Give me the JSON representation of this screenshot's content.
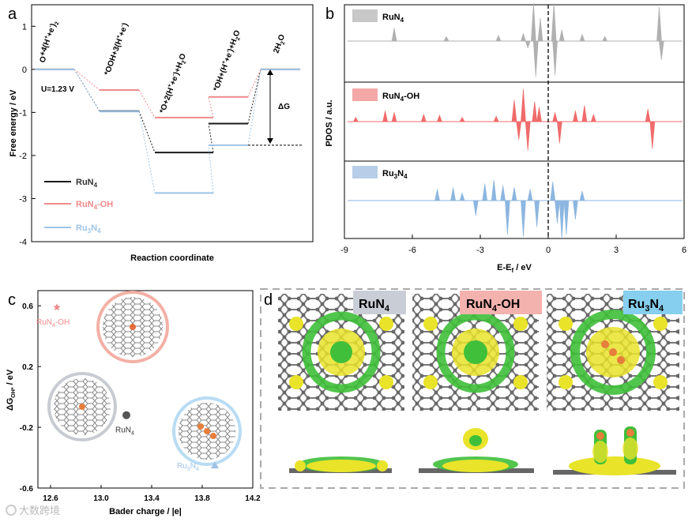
{
  "panel_letters": {
    "a": "a",
    "b": "b",
    "c": "c",
    "d": "d"
  },
  "colors": {
    "runa": "#1a1a1a",
    "run4oh": "#f08a8a",
    "ru3n4": "#9ec4e6",
    "pdos_runa_fill": "#b0b0b0",
    "pdos_run4oh_fill": "#ef6b6b",
    "pdos_ru3n4_fill": "#8cb6e0",
    "legend_runa_box": "#c8c8c8",
    "legend_run4oh_box": "#f4a7a7",
    "legend_ru3n4_box": "#b7cde8",
    "ruc_orange": "#e67e3c",
    "iso_yellow": "#e9e32a",
    "iso_green": "#3fbf3a",
    "label_gray_bg": "#c9ced6",
    "label_pink_bg": "#f4b2ae",
    "label_blue_bg": "#86cfee"
  },
  "chart_data": [
    {
      "type": "line",
      "panel": "a",
      "title": "",
      "xlabel": "Reaction coordinate",
      "ylabel": "Free energy / eV",
      "ylim": [
        -4,
        1.5
      ],
      "yticks": [
        "-4",
        "-3",
        "-2",
        "-1",
        "0",
        "1"
      ],
      "steps": [
        "O2+4(H+e-)",
        "*OOH+3(H+e-)",
        "*O+2(H+e-)+H2O",
        "*OH+(H+e-)+H2O",
        "2H2O"
      ],
      "step_labels_sub": [
        {
          "main": "O",
          "sub1": "2",
          "rest": "+4(H",
          "sup": "+",
          "tail": "+e",
          "sup2": "-",
          "end": ")"
        },
        {
          "main": "*OOH+3(H",
          "sup": "+",
          "tail": "+e",
          "sup2": "-",
          "end": ")"
        },
        {
          "main": "*O+2(H",
          "sup": "+",
          "tail": "+e",
          "sup2": "-",
          "end": ")+H",
          "sub1": "2",
          "end2": "O"
        },
        {
          "main": "*OH+(H",
          "sup": "+",
          "tail": "+e",
          "sup2": "-",
          "end": ")+H",
          "sub1": "2",
          "end2": "O"
        },
        {
          "main": "2H",
          "sub1": "2",
          "end2": "O"
        }
      ],
      "annotation_u": "U=1.23 V",
      "annotation_dg": "ΔG",
      "series": [
        {
          "name": "RuN4",
          "label_main": "RuN",
          "label_sub": "4",
          "label_tail": "",
          "values": [
            0,
            -0.97,
            -1.93,
            -1.26,
            0
          ]
        },
        {
          "name": "RuN4-OH",
          "label_main": "RuN",
          "label_sub": "4",
          "label_tail": "-OH",
          "values": [
            0,
            -0.48,
            -1.12,
            -0.64,
            0
          ]
        },
        {
          "name": "Ru3N4",
          "label_main": "Ru",
          "label_sub": "3",
          "label_tail": "N",
          "label_sub2": "4",
          "values": [
            0,
            -0.98,
            -2.87,
            -1.76,
            0
          ]
        }
      ],
      "dg_line_value": -1.76
    },
    {
      "type": "area",
      "panel": "b",
      "title": "",
      "xlabel": "E-Ef / eV",
      "xlabel_main": "E-E",
      "xlabel_sub": "f",
      "xlabel_tail": " / eV",
      "ylabel": "PDOS / a.u.",
      "xlim": [
        -9,
        6
      ],
      "xticks": [
        "-9",
        "-6",
        "-3",
        "0",
        "3",
        "6"
      ],
      "fermi_level": 0,
      "series": [
        {
          "name": "RuN4",
          "label_main": "RuN",
          "label_sub": "4",
          "label_tail": "",
          "peaks": [
            [
              -6.8,
              0.35
            ],
            [
              -4.5,
              0.12
            ],
            [
              -2.2,
              0.15
            ],
            [
              -1.1,
              0.2
            ],
            [
              -0.9,
              -0.18
            ],
            [
              -0.65,
              1.0
            ],
            [
              -0.55,
              -0.95
            ],
            [
              -0.35,
              0.6
            ],
            [
              0.25,
              1.0
            ],
            [
              0.3,
              -0.9
            ],
            [
              0.6,
              0.3
            ],
            [
              1.5,
              0.18
            ],
            [
              2.5,
              0.12
            ],
            [
              4.9,
              0.9
            ],
            [
              5.0,
              -0.5
            ]
          ]
        },
        {
          "name": "RuN4-OH",
          "label_main": "RuN",
          "label_sub": "4",
          "label_tail": "-OH",
          "peaks": [
            [
              -8.5,
              0.12
            ],
            [
              -7.2,
              0.3
            ],
            [
              -6.8,
              0.25
            ],
            [
              -5.5,
              0.2
            ],
            [
              -4.8,
              0.18
            ],
            [
              -3.8,
              0.12
            ],
            [
              -2.3,
              0.15
            ],
            [
              -1.5,
              0.6
            ],
            [
              -1.3,
              -0.5
            ],
            [
              -1.1,
              0.9
            ],
            [
              -0.9,
              -0.8
            ],
            [
              -0.6,
              0.55
            ],
            [
              -0.4,
              0.4
            ],
            [
              0.5,
              -0.6
            ],
            [
              0.3,
              0.25
            ],
            [
              1.2,
              0.3
            ],
            [
              1.6,
              0.45
            ],
            [
              2.0,
              0.2
            ],
            [
              4.4,
              0.35
            ],
            [
              4.6,
              -0.75
            ]
          ]
        },
        {
          "name": "Ru3N4",
          "label_main": "Ru",
          "label_sub": "3",
          "label_tail": "N",
          "label_sub2": "4",
          "peaks": [
            [
              -4.9,
              0.3
            ],
            [
              -4.2,
              0.35
            ],
            [
              -3.8,
              0.2
            ],
            [
              -3.2,
              -0.4
            ],
            [
              -2.8,
              0.45
            ],
            [
              -2.4,
              0.55
            ],
            [
              -2.0,
              0.4
            ],
            [
              -1.8,
              -0.9
            ],
            [
              -1.5,
              0.35
            ],
            [
              -1.1,
              -0.95
            ],
            [
              -0.8,
              0.3
            ],
            [
              -0.5,
              -0.7
            ],
            [
              0.2,
              0.5
            ],
            [
              0.4,
              -0.6
            ],
            [
              0.6,
              -1.0
            ],
            [
              0.8,
              -0.9
            ],
            [
              1.2,
              -0.5
            ],
            [
              1.5,
              0.25
            ]
          ]
        }
      ]
    },
    {
      "type": "scatter",
      "panel": "c",
      "title": "",
      "xlabel": "Bader charge / |e|",
      "ylabel": "ΔGOH* / eV",
      "ylabel_main": "ΔG",
      "ylabel_sub": "OH*",
      "ylabel_tail": " / eV",
      "xlim": [
        12.5,
        14.2
      ],
      "ylim": [
        -0.6,
        0.7
      ],
      "xticks": [
        "12.6",
        "13.0",
        "13.4",
        "13.8",
        "14.2"
      ],
      "yticks": [
        "-0.6",
        "-0.2",
        "0.2",
        "0.6"
      ],
      "points": [
        {
          "name": "RuN4-OH",
          "label_main": "RuN",
          "label_sub": "4",
          "label_tail": "-OH",
          "x": 12.65,
          "y": 0.59,
          "marker": "star"
        },
        {
          "name": "RuN4",
          "label_main": "RuN",
          "label_sub": "4",
          "label_tail": "",
          "x": 13.2,
          "y": -0.12,
          "marker": "circle"
        },
        {
          "name": "Ru3N4",
          "label_main": "Ru",
          "label_sub": "3",
          "label_tail": "N",
          "label_sub2": "4",
          "x": 13.9,
          "y": -0.45,
          "marker": "triangle"
        }
      ]
    }
  ],
  "panel_d": {
    "labels": [
      {
        "name": "RuN4",
        "main": "RuN",
        "sub": "4",
        "tail": ""
      },
      {
        "name": "RuN4-OH",
        "main": "RuN",
        "sub": "4",
        "tail": "-OH"
      },
      {
        "name": "Ru3N4",
        "main": "Ru",
        "sub": "3",
        "tail": "N",
        "sub2": "4"
      }
    ]
  },
  "watermark": "大数跨境"
}
